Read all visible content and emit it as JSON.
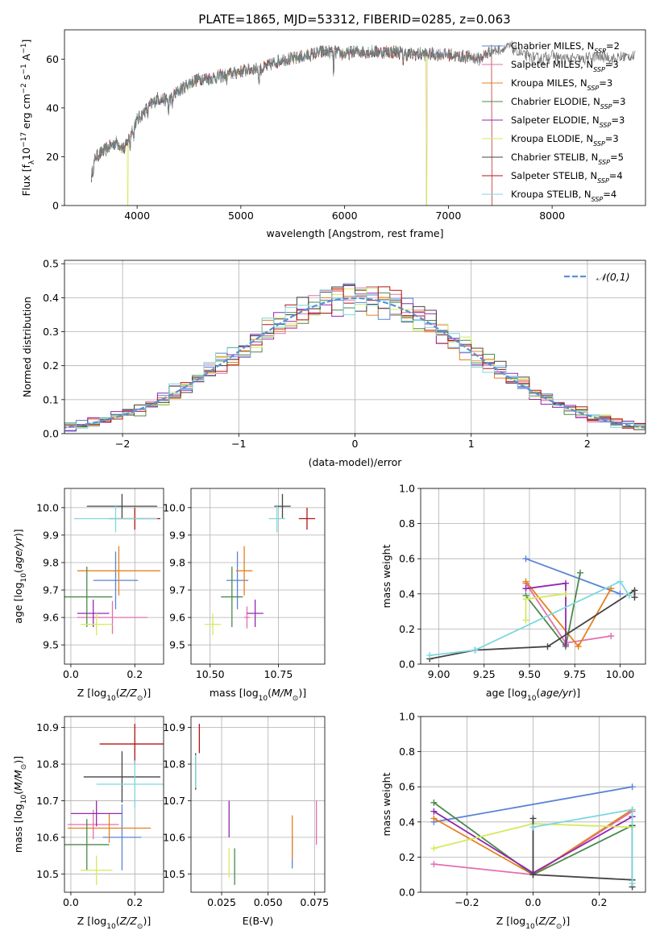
{
  "figure": {
    "title": "PLATE=1865, MJD=53312, FIBERID=0285, z=0.063"
  },
  "series_colors": {
    "Chabrier MILES": "#5b84d6",
    "Salpeter MILES": "#e36fae",
    "Kroupa MILES": "#e6801e",
    "Chabrier ELODIE": "#4a8a4a",
    "Salpeter ELODIE": "#9228b0",
    "Kroupa ELODIE": "#d6ea5e",
    "Chabrier STELIB": "#444444",
    "Salpeter STELIB": "#b21515",
    "Kroupa STELIB": "#7fd6df"
  },
  "chart_data": [
    {
      "id": "spectrum",
      "type": "line",
      "xlabel": "wavelength [Angstrom, rest frame]",
      "ylabel_parts": {
        "main": "Flux [f",
        "sub": "λ",
        "rest": "10",
        "sup1": "−17",
        "rest2": " erg cm",
        "sup2": "−2",
        "rest3": " s",
        "sup3": "−1",
        "rest4": " A",
        "sup4": "−1",
        "end": "]"
      },
      "xlim": [
        3300,
        8900
      ],
      "ylim": [
        0,
        72
      ],
      "xticks": [
        4000,
        5000,
        6000,
        7000,
        8000
      ],
      "yticks": [
        0,
        20,
        40,
        60
      ],
      "grid": false,
      "legend_placement": "top-right",
      "legend": [
        {
          "name": "Chabrier MILES",
          "nssp": "2"
        },
        {
          "name": "Salpeter MILES",
          "nssp": "3"
        },
        {
          "name": "Kroupa MILES",
          "nssp": "3"
        },
        {
          "name": "Chabrier ELODIE",
          "nssp": "3"
        },
        {
          "name": "Salpeter ELODIE",
          "nssp": "3"
        },
        {
          "name": "Kroupa ELODIE",
          "nssp": "3"
        },
        {
          "name": "Chabrier STELIB",
          "nssp": "5"
        },
        {
          "name": "Salpeter STELIB",
          "nssp": "4"
        },
        {
          "name": "Kroupa STELIB",
          "nssp": "4"
        }
      ],
      "continuum": [
        [
          3560,
          12
        ],
        [
          3600,
          20
        ],
        [
          3700,
          23
        ],
        [
          3800,
          26
        ],
        [
          3880,
          23
        ],
        [
          3950,
          31
        ],
        [
          4000,
          35
        ],
        [
          4100,
          40
        ],
        [
          4200,
          44
        ],
        [
          4300,
          43
        ],
        [
          4400,
          47
        ],
        [
          4500,
          50
        ],
        [
          4600,
          52
        ],
        [
          4700,
          52
        ],
        [
          4800,
          53
        ],
        [
          4900,
          54
        ],
        [
          5000,
          55
        ],
        [
          5100,
          56
        ],
        [
          5200,
          56
        ],
        [
          5300,
          58
        ],
        [
          5400,
          60
        ],
        [
          5500,
          60
        ],
        [
          5600,
          61
        ],
        [
          5700,
          62
        ],
        [
          5800,
          63
        ],
        [
          5900,
          63
        ],
        [
          6000,
          62
        ],
        [
          6100,
          63
        ],
        [
          6200,
          63
        ],
        [
          6300,
          63
        ],
        [
          6400,
          63
        ],
        [
          6500,
          63
        ],
        [
          6600,
          62
        ],
        [
          6700,
          62
        ],
        [
          6800,
          62
        ],
        [
          6900,
          62
        ],
        [
          7000,
          62
        ],
        [
          7100,
          61
        ],
        [
          7200,
          61
        ],
        [
          7300,
          60
        ],
        [
          7400,
          63
        ],
        [
          7500,
          64
        ],
        [
          7600,
          65
        ],
        [
          7700,
          62
        ],
        [
          7800,
          61
        ],
        [
          7900,
          60
        ],
        [
          8000,
          62
        ],
        [
          8100,
          60
        ],
        [
          8200,
          60
        ],
        [
          8300,
          60
        ],
        [
          8400,
          61
        ],
        [
          8500,
          61
        ],
        [
          8600,
          60
        ],
        [
          8700,
          61
        ],
        [
          8800,
          61
        ]
      ],
      "absorption_lines": [
        [
          3933,
          6
        ],
        [
          3968,
          6
        ],
        [
          4102,
          4
        ],
        [
          4304,
          6
        ],
        [
          4340,
          4
        ],
        [
          4861,
          3
        ],
        [
          5175,
          8
        ],
        [
          5893,
          10
        ],
        [
          6563,
          3
        ]
      ],
      "dropouts": [
        {
          "series": "Kroupa ELODIE",
          "x": [
            3910,
            6790
          ]
        },
        {
          "series": "Salpeter STELIB",
          "x": [
            7420
          ]
        },
        {
          "series": "Salpeter MILES",
          "x": [
            6790
          ]
        }
      ],
      "model_end": {
        "ELODIE": 6800,
        "STELIB": 7420,
        "MILES": 7400
      }
    },
    {
      "id": "residuals",
      "type": "histogram",
      "xlabel": "(data-model)/error",
      "ylabel": "Normed distribution",
      "xlim": [
        -2.5,
        2.5
      ],
      "ylim": [
        0,
        0.51
      ],
      "xticks": [
        -2,
        -1,
        0,
        1,
        2
      ],
      "yticks": [
        0.0,
        0.1,
        0.2,
        0.3,
        0.4,
        0.5
      ],
      "grid": true,
      "bin_width": 0.1,
      "reference_curve": {
        "name": "𝒩(0,1)",
        "mean": 0,
        "sigma": 1,
        "color": "#5b8fd6"
      },
      "legend_placement": "top-right"
    },
    {
      "id": "age-Z",
      "type": "errorbar",
      "xlabel": "Z [log10(Z/Z⊙)]",
      "ylabel": "age  [log10(age/yr)]",
      "xlim": [
        -0.02,
        0.29
      ],
      "ylim": [
        9.43,
        10.07
      ],
      "xticks": [
        0.0,
        0.2
      ],
      "yticks": [
        9.5,
        9.6,
        9.7,
        9.8,
        9.9,
        10.0
      ],
      "grid": true,
      "points": [
        {
          "series": "Chabrier MILES",
          "x": 0.14,
          "xerr": 0.07,
          "y": 9.735,
          "yerr": 0.105
        },
        {
          "series": "Salpeter MILES",
          "x": 0.13,
          "xerr": 0.11,
          "y": 9.6,
          "yerr": 0.06
        },
        {
          "series": "Kroupa MILES",
          "x": 0.15,
          "xerr": 0.13,
          "y": 9.77,
          "yerr": 0.09
        },
        {
          "series": "Chabrier ELODIE",
          "x": 0.05,
          "xerr": 0.08,
          "y": 9.675,
          "yerr": 0.11
        },
        {
          "series": "Salpeter ELODIE",
          "x": 0.07,
          "xerr": 0.05,
          "y": 9.615,
          "yerr": 0.05
        },
        {
          "series": "Kroupa ELODIE",
          "x": 0.08,
          "xerr": 0.05,
          "y": 9.575,
          "yerr": 0.04
        },
        {
          "series": "Chabrier STELIB",
          "x": 0.16,
          "xerr": 0.11,
          "y": 10.005,
          "yerr": 0.045
        },
        {
          "series": "Salpeter STELIB",
          "x": 0.2,
          "xerr": 0.08,
          "y": 9.96,
          "yerr": 0.04
        },
        {
          "series": "Kroupa STELIB",
          "x": 0.14,
          "xerr": 0.13,
          "y": 9.96,
          "yerr": 0.05
        }
      ]
    },
    {
      "id": "age-mass",
      "type": "errorbar",
      "xlabel": "mass [log10(M/M⊙)]",
      "ylabel": "",
      "xlim": [
        10.43,
        10.92
      ],
      "ylim": [
        9.43,
        10.07
      ],
      "xticks": [
        10.5,
        10.75
      ],
      "yticks": [
        9.5,
        9.6,
        9.7,
        9.8,
        9.9,
        10.0
      ],
      "grid": true,
      "points": [
        {
          "series": "Chabrier MILES",
          "x": 10.6,
          "xerr": 0.04,
          "y": 9.735,
          "yerr": 0.105
        },
        {
          "series": "Salpeter MILES",
          "x": 10.635,
          "xerr": 0.01,
          "y": 9.6,
          "yerr": 0.04
        },
        {
          "series": "Kroupa MILES",
          "x": 10.625,
          "xerr": 0.03,
          "y": 9.77,
          "yerr": 0.09
        },
        {
          "series": "Chabrier ELODIE",
          "x": 10.58,
          "xerr": 0.04,
          "y": 9.675,
          "yerr": 0.11
        },
        {
          "series": "Salpeter ELODIE",
          "x": 10.665,
          "xerr": 0.03,
          "y": 9.615,
          "yerr": 0.05
        },
        {
          "series": "Kroupa ELODIE",
          "x": 10.51,
          "xerr": 0.03,
          "y": 9.575,
          "yerr": 0.04
        },
        {
          "series": "Chabrier STELIB",
          "x": 10.765,
          "xerr": 0.03,
          "y": 10.005,
          "yerr": 0.045
        },
        {
          "series": "Salpeter STELIB",
          "x": 10.855,
          "xerr": 0.03,
          "y": 9.96,
          "yerr": 0.04
        },
        {
          "series": "Kroupa STELIB",
          "x": 10.745,
          "xerr": 0.03,
          "y": 9.96,
          "yerr": 0.05
        }
      ]
    },
    {
      "id": "weight-age",
      "type": "line",
      "xlabel": "age  [log10(age/yr)]",
      "ylabel": "mass weight",
      "xlim": [
        8.9,
        10.14
      ],
      "ylim": [
        0,
        1
      ],
      "xticks": [
        9.0,
        9.25,
        9.5,
        9.75,
        10.0
      ],
      "yticks": [
        0.0,
        0.2,
        0.4,
        0.6,
        0.8,
        1.0
      ],
      "grid": true,
      "series": [
        {
          "name": "Chabrier MILES",
          "points": [
            [
              9.48,
              0.6
            ],
            [
              10.0,
              0.4
            ]
          ]
        },
        {
          "name": "Salpeter MILES",
          "points": [
            [
              9.48,
              0.46
            ],
            [
              9.7,
              0.12
            ],
            [
              9.95,
              0.16
            ]
          ]
        },
        {
          "name": "Kroupa MILES",
          "points": [
            [
              9.48,
              0.47
            ],
            [
              9.77,
              0.1
            ],
            [
              9.95,
              0.43
            ]
          ]
        },
        {
          "name": "Chabrier ELODIE",
          "points": [
            [
              9.48,
              0.39
            ],
            [
              9.7,
              0.1
            ],
            [
              9.78,
              0.52
            ]
          ]
        },
        {
          "name": "Salpeter ELODIE",
          "points": [
            [
              9.48,
              0.43
            ],
            [
              9.7,
              0.46
            ],
            [
              9.7,
              0.11
            ]
          ]
        },
        {
          "name": "Kroupa ELODIE",
          "points": [
            [
              9.48,
              0.25
            ],
            [
              9.48,
              0.37
            ],
            [
              9.7,
              0.4
            ]
          ]
        },
        {
          "name": "Chabrier STELIB",
          "points": [
            [
              8.95,
              0.03
            ],
            [
              9.2,
              0.08
            ],
            [
              9.6,
              0.1
            ],
            [
              10.08,
              0.42
            ],
            [
              10.08,
              0.38
            ]
          ]
        },
        {
          "name": "Salpeter STELIB",
          "points": []
        },
        {
          "name": "Kroupa STELIB",
          "points": [
            [
              8.95,
              0.05
            ],
            [
              9.2,
              0.08
            ],
            [
              10.0,
              0.47
            ],
            [
              10.05,
              0.39
            ]
          ]
        }
      ]
    },
    {
      "id": "mass-Z",
      "type": "errorbar",
      "xlabel": "Z [log10(Z/Z⊙)]",
      "ylabel": "mass [log10(M/M⊙)]",
      "xlim": [
        -0.02,
        0.29
      ],
      "ylim": [
        10.45,
        10.93
      ],
      "xticks": [
        0.0,
        0.2
      ],
      "yticks": [
        10.5,
        10.6,
        10.7,
        10.8,
        10.9
      ],
      "grid": true,
      "points": [
        {
          "series": "Chabrier MILES",
          "x": 0.16,
          "xerr": 0.06,
          "y": 10.6,
          "yerr": 0.09
        },
        {
          "series": "Salpeter MILES",
          "x": 0.07,
          "xerr": 0.08,
          "y": 10.635,
          "yerr": 0.04
        },
        {
          "series": "Kroupa MILES",
          "x": 0.12,
          "xerr": 0.13,
          "y": 10.625,
          "yerr": 0.04
        },
        {
          "series": "Chabrier ELODIE",
          "x": 0.05,
          "xerr": 0.07,
          "y": 10.58,
          "yerr": 0.07
        },
        {
          "series": "Salpeter ELODIE",
          "x": 0.08,
          "xerr": 0.08,
          "y": 10.665,
          "yerr": 0.035
        },
        {
          "series": "Kroupa ELODIE",
          "x": 0.08,
          "xerr": 0.05,
          "y": 10.51,
          "yerr": 0.04
        },
        {
          "series": "Chabrier STELIB",
          "x": 0.16,
          "xerr": 0.12,
          "y": 10.765,
          "yerr": 0.07
        },
        {
          "series": "Salpeter STELIB",
          "x": 0.2,
          "xerr": 0.11,
          "y": 10.855,
          "yerr": 0.055
        },
        {
          "series": "Kroupa STELIB",
          "x": 0.2,
          "xerr": 0.12,
          "y": 10.745,
          "yerr": 0.065
        }
      ]
    },
    {
      "id": "mass-EBV",
      "type": "errorbar",
      "xlabel": "E(B-V)",
      "ylabel": "",
      "xlim": [
        0.0085,
        0.0805
      ],
      "ylim": [
        10.45,
        10.93
      ],
      "xticks": [
        0.025,
        0.05,
        0.075
      ],
      "yticks": [
        10.5,
        10.6,
        10.7,
        10.8,
        10.9
      ],
      "grid": true,
      "points": [
        {
          "series": "Chabrier MILES",
          "x": 0.063,
          "xerr": 0,
          "y": 10.56,
          "yerr": 0.045
        },
        {
          "series": "Salpeter MILES",
          "x": 0.076,
          "xerr": 0,
          "y": 10.64,
          "yerr": 0.06
        },
        {
          "series": "Kroupa MILES",
          "x": 0.063,
          "xerr": 0,
          "y": 10.6,
          "yerr": 0.06
        },
        {
          "series": "Chabrier ELODIE",
          "x": 0.032,
          "xerr": 0,
          "y": 10.52,
          "yerr": 0.05
        },
        {
          "series": "Salpeter ELODIE",
          "x": 0.029,
          "xerr": 0,
          "y": 10.65,
          "yerr": 0.05
        },
        {
          "series": "Kroupa ELODIE",
          "x": 0.029,
          "xerr": 0,
          "y": 10.53,
          "yerr": 0.04
        },
        {
          "series": "Chabrier STELIB",
          "x": 0.011,
          "xerr": 0,
          "y": 10.78,
          "yerr": 0.05
        },
        {
          "series": "Salpeter STELIB",
          "x": 0.013,
          "xerr": 0,
          "y": 10.87,
          "yerr": 0.04
        },
        {
          "series": "Kroupa STELIB",
          "x": 0.011,
          "xerr": 0,
          "y": 10.78,
          "yerr": 0.045
        }
      ]
    },
    {
      "id": "weight-Z",
      "type": "line",
      "xlabel": "Z [log10(Z/Z⊙)]",
      "ylabel": "mass weight",
      "xlim": [
        -0.34,
        0.34
      ],
      "ylim": [
        0,
        1
      ],
      "xticks": [
        -0.2,
        0.0,
        0.2
      ],
      "yticks": [
        0.0,
        0.2,
        0.4,
        0.6,
        0.8,
        1.0
      ],
      "grid": true,
      "series": [
        {
          "name": "Chabrier MILES",
          "points": [
            [
              -0.3,
              0.4
            ],
            [
              0.3,
              0.6
            ]
          ]
        },
        {
          "name": "Salpeter MILES",
          "points": [
            [
              -0.3,
              0.16
            ],
            [
              0.0,
              0.1
            ],
            [
              0.3,
              0.46
            ]
          ]
        },
        {
          "name": "Kroupa MILES",
          "points": [
            [
              -0.3,
              0.42
            ],
            [
              0.0,
              0.1
            ],
            [
              0.3,
              0.47
            ]
          ]
        },
        {
          "name": "Chabrier ELODIE",
          "points": [
            [
              -0.3,
              0.51
            ],
            [
              0.0,
              0.1
            ],
            [
              0.3,
              0.38
            ]
          ]
        },
        {
          "name": "Salpeter ELODIE",
          "points": [
            [
              -0.3,
              0.46
            ],
            [
              0.0,
              0.11
            ],
            [
              0.3,
              0.43
            ]
          ]
        },
        {
          "name": "Kroupa ELODIE",
          "points": [
            [
              -0.3,
              0.25
            ],
            [
              0.0,
              0.39
            ],
            [
              0.3,
              0.37
            ]
          ]
        },
        {
          "name": "Chabrier STELIB",
          "points": [
            [
              0.0,
              0.42
            ],
            [
              0.0,
              0.1
            ],
            [
              0.3,
              0.07
            ],
            [
              0.3,
              0.38
            ],
            [
              0.3,
              0.03
            ]
          ]
        },
        {
          "name": "Kroupa STELIB",
          "points": [
            [
              0.0,
              0.37
            ],
            [
              0.3,
              0.47
            ],
            [
              0.3,
              0.05
            ]
          ]
        }
      ]
    }
  ]
}
